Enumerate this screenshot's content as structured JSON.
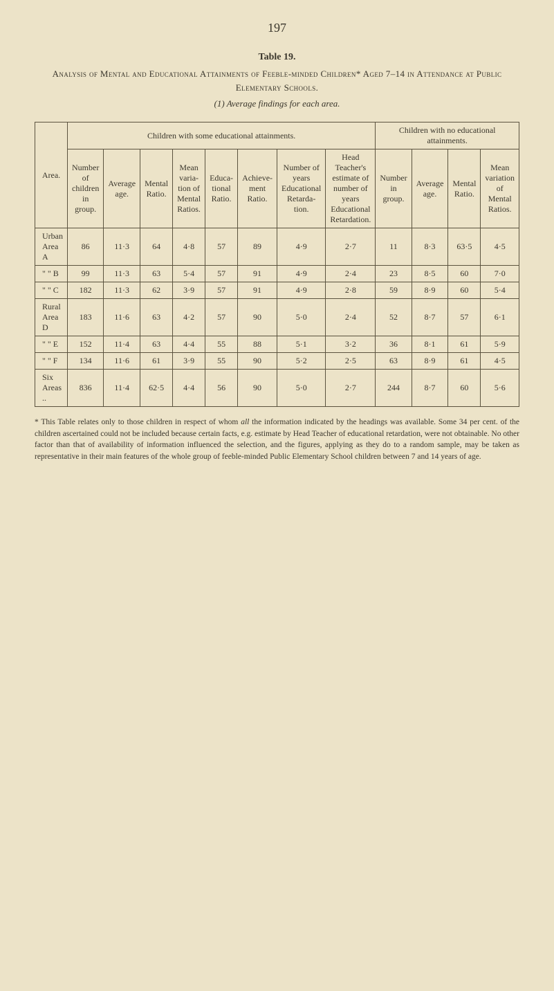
{
  "pageNumber": "197",
  "tableNumber": "Table 19.",
  "mainTitle": "Analysis of Mental and Educational Attainments of Feeble-minded Children* Aged 7–14 in Attendance at Public Elementary Schools.",
  "subTitle": "(1) Average findings for each area.",
  "groupHeaders": {
    "area": "Area.",
    "withEdu": "Children with some educational attainments.",
    "noEdu": "Children with no educational attainments."
  },
  "colHeaders": {
    "c1": "Number of children in group.",
    "c2": "Average age.",
    "c3": "Mental Ratio.",
    "c4": "Mean varia-tion of Mental Ratios.",
    "c5": "Educa-tional Ratio.",
    "c6": "Achieve-ment Ratio.",
    "c7": "Number of years Educational Retarda-tion.",
    "c8": "Head Teacher's estimate of number of years Educational Retardation.",
    "c9": "Number in group.",
    "c10": "Average age.",
    "c11": "Mental Ratio.",
    "c12": "Mean variation of Mental Ratios."
  },
  "rows": [
    {
      "area": "Urban Area A",
      "v": [
        "86",
        "11·3",
        "64",
        "4·8",
        "57",
        "89",
        "4·9",
        "2·7",
        "11",
        "8·3",
        "63·5",
        "4·5"
      ]
    },
    {
      "area": "  \"       \"    B",
      "v": [
        "99",
        "11·3",
        "63",
        "5·4",
        "57",
        "91",
        "4·9",
        "2·4",
        "23",
        "8·5",
        "60",
        "7·0"
      ]
    },
    {
      "area": "  \"       \"    C",
      "v": [
        "182",
        "11·3",
        "62",
        "3·9",
        "57",
        "91",
        "4·9",
        "2·8",
        "59",
        "8·9",
        "60",
        "5·4"
      ]
    },
    {
      "area": "Rural Area D",
      "v": [
        "183",
        "11·6",
        "63",
        "4·2",
        "57",
        "90",
        "5·0",
        "2·4",
        "52",
        "8·7",
        "57",
        "6·1"
      ]
    },
    {
      "area": "  \"       \"    E",
      "v": [
        "152",
        "11·4",
        "63",
        "4·4",
        "55",
        "88",
        "5·1",
        "3·2",
        "36",
        "8·1",
        "61",
        "5·9"
      ]
    },
    {
      "area": "  \"       \"    F",
      "v": [
        "134",
        "11·6",
        "61",
        "3·9",
        "55",
        "90",
        "5·2",
        "2·5",
        "63",
        "8·9",
        "61",
        "4·5"
      ]
    }
  ],
  "totalRow": {
    "area": "Six Areas  ..",
    "v": [
      "836",
      "11·4",
      "62·5",
      "4·4",
      "56",
      "90",
      "5·0",
      "2·7",
      "244",
      "8·7",
      "60",
      "5·6"
    ]
  },
  "footnote": "* This Table relates only to those children in respect of whom all the information indicated by the headings was available. Some 34 per cent. of the children ascertained could not be included because certain facts, e.g. estimate by Head Teacher of educational retardation, were not obtainable. No other factor than that of availability of information influenced the selection, and the figures, applying as they do to a random sample, may be taken as representative in their main features of the whole group of feeble-minded Public Elementary School children between 7 and 14 years of age.",
  "style": {
    "type": "table",
    "background_color": "#ece3c8",
    "border_color": "#5a523e",
    "text_color": "#3a362c",
    "body_fontsize": 12,
    "header_fontsize": 12,
    "title_fontsize": 13,
    "font_family": "Times New Roman, serif",
    "col_count": 13,
    "row_count": 7,
    "italic_footnote_word": "all"
  }
}
